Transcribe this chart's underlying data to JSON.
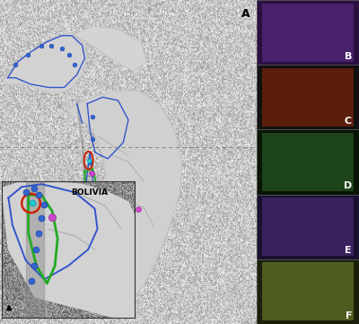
{
  "fig_width": 4.0,
  "fig_height": 3.61,
  "dpi": 100,
  "photo_panels": [
    {
      "label": "B",
      "color": "#3a1a55"
    },
    {
      "label": "C",
      "color": "#1a0a05"
    },
    {
      "label": "D",
      "color": "#0a1a05"
    },
    {
      "label": "E",
      "color": "#2a1a40"
    },
    {
      "label": "F",
      "color": "#2a3010"
    }
  ],
  "ocean_color": "#ffffff",
  "blue_line_color": "#3355cc",
  "green_line_color": "#22aa22",
  "red_line_color": "#cc2200",
  "blue_dot_color": "#3366cc",
  "magenta_dot_color": "#cc44cc",
  "cyan_dot_color": "#22cccc",
  "bolivia_label": "BOLIVIA"
}
